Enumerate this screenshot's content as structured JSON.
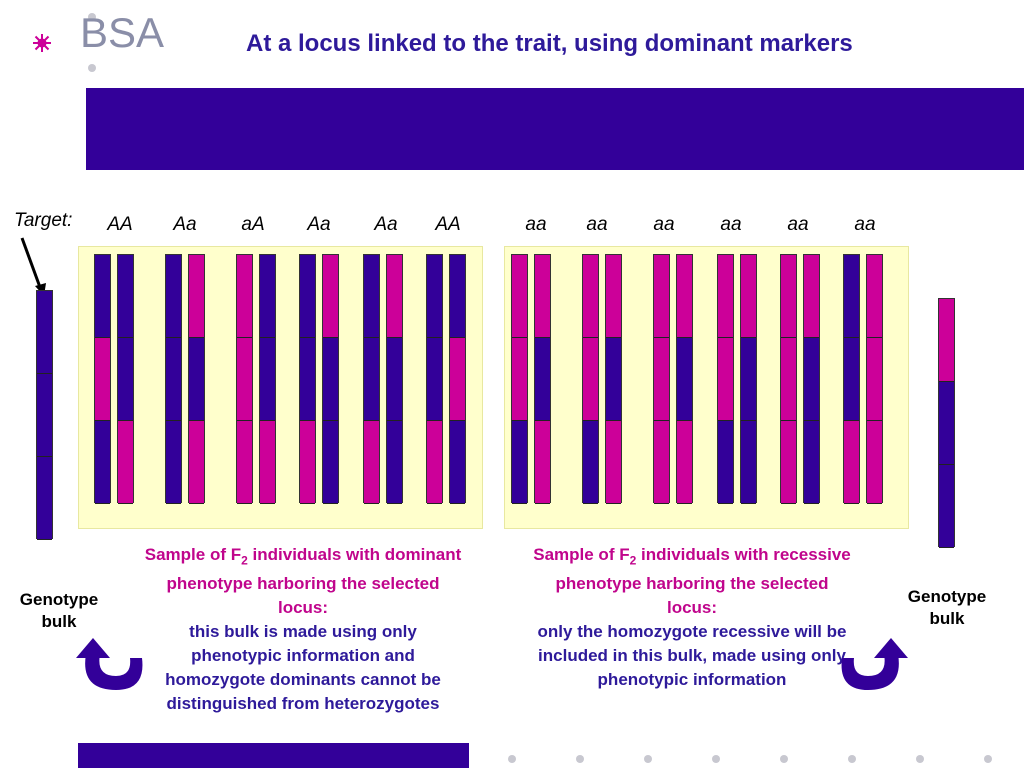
{
  "header": {
    "logo_text": "BSA",
    "title": "At a locus linked to the trait, using dominant markers"
  },
  "target": {
    "label": "Target:"
  },
  "dominant_group": {
    "genotypes": [
      "AA",
      "Aa",
      "aA",
      "Aa",
      "Aa",
      "AA"
    ],
    "caption_pink_prefix": "Sample of F",
    "caption_pink_sub": "2",
    "caption_pink_rest": " individuals with dominant phenotype harboring the selected locus:",
    "caption_blue": "this bulk is made using only phenotypic information and homozygote dominants cannot be distinguished from heterozygotes"
  },
  "recessive_group": {
    "genotypes": [
      "aa",
      "aa",
      "aa",
      "aa",
      "aa",
      "aa"
    ],
    "caption_pink_prefix": "Sample of F",
    "caption_pink_sub": "2",
    "caption_pink_rest": " individuals with recessive phenotype harboring the selected locus:",
    "caption_blue": "only the homozygote recessive will be included in this bulk, made using only phenotypic information"
  },
  "bulk_left": {
    "label_line1": "Genotype",
    "label_line2": "bulk"
  },
  "bulk_right": {
    "label_line1": "Genotype",
    "label_line2": "bulk"
  },
  "colors": {
    "blue": "#330099",
    "pink": "#cc0099",
    "panel": "#ffffcc",
    "accent_text": "#2e1a9a",
    "pink_text": "#c0058c"
  }
}
